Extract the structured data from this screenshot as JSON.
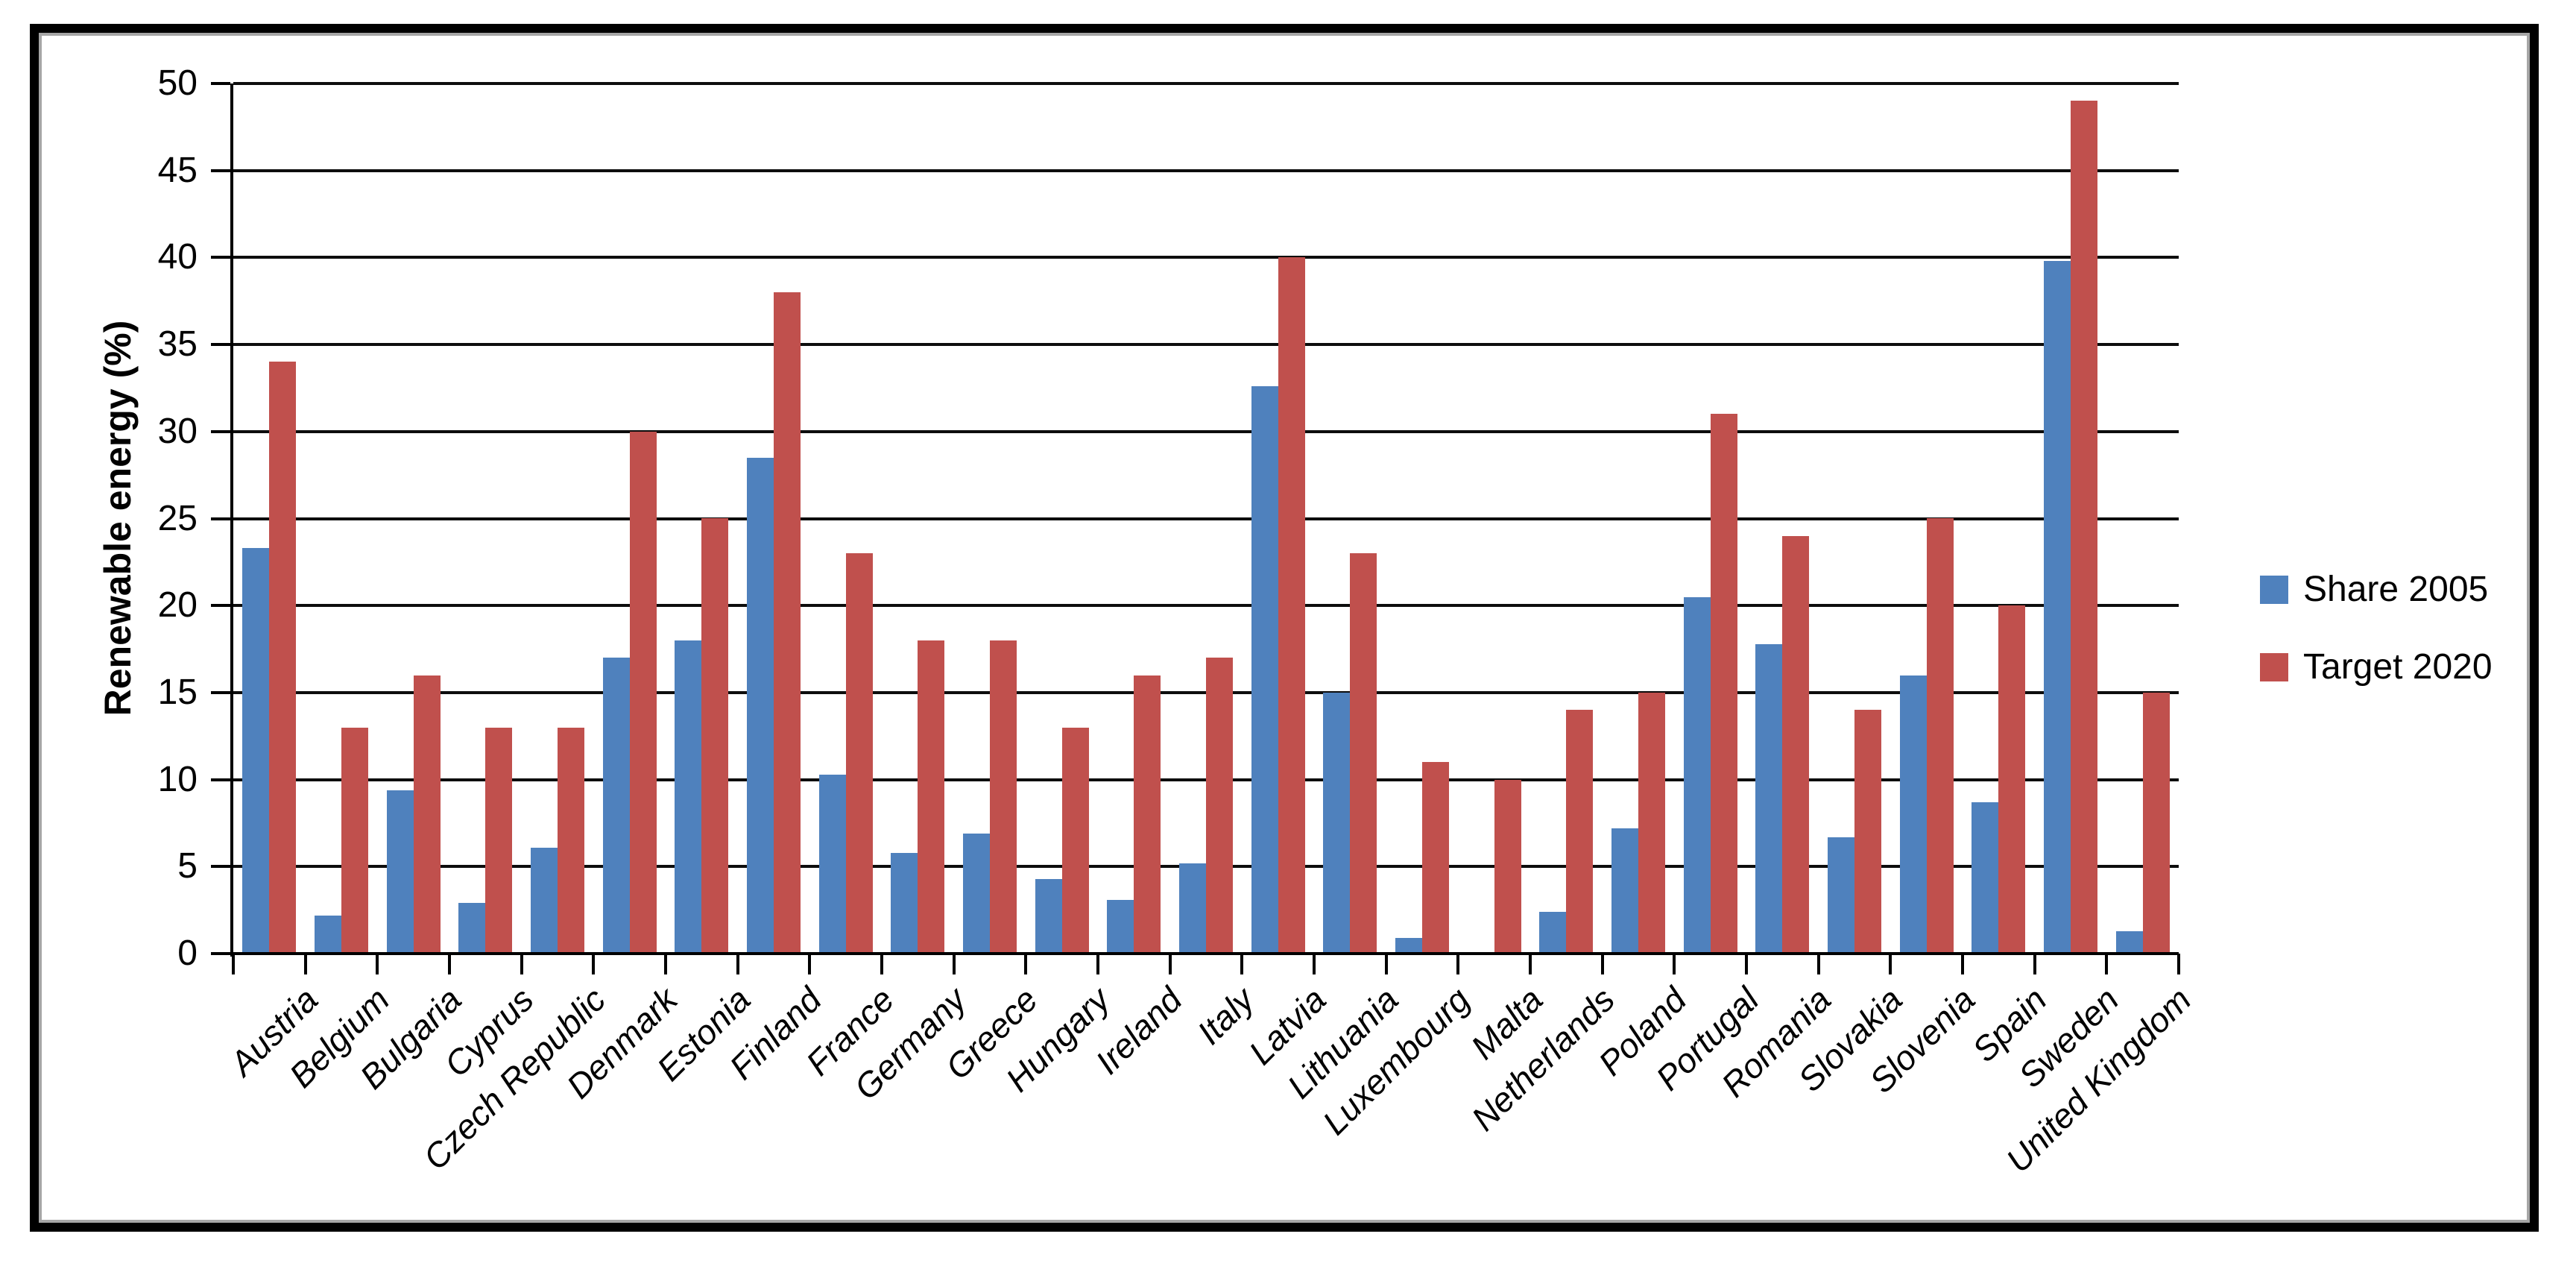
{
  "chart_data": {
    "type": "bar",
    "title": "",
    "xlabel": "",
    "ylabel": "Renewable energy (%)",
    "ylim": [
      0,
      50
    ],
    "y_tick_step": 5,
    "y_ticks": [
      0,
      5,
      10,
      15,
      20,
      25,
      30,
      35,
      40,
      45,
      50
    ],
    "grid": true,
    "legend_position": "right",
    "plot_background": "#FFFFFF",
    "gridline_color": "#000000",
    "axis_color": "#000000",
    "frame_border_color": "#000000",
    "frame_inner_line_color": "#A6A6A6",
    "categories": [
      "Austria",
      "Belgium",
      "Bulgaria",
      "Cyprus",
      "Czech Republic",
      "Denmark",
      "Estonia",
      "Finland",
      "France",
      "Germany",
      "Greece",
      "Hungary",
      "Ireland",
      "Italy",
      "Latvia",
      "Lithuania",
      "Luxembourg",
      "Malta",
      "Netherlands",
      "Poland",
      "Portugal",
      "Romania",
      "Slovakia",
      "Slovenia",
      "Spain",
      "Sweden",
      "United Kingdom"
    ],
    "series": [
      {
        "name": "Share 2005",
        "color": "#4F81BD",
        "values": [
          23.3,
          2.2,
          9.4,
          2.9,
          6.1,
          17.0,
          18.0,
          28.5,
          10.3,
          5.8,
          6.9,
          4.3,
          3.1,
          5.2,
          32.6,
          15.0,
          0.9,
          0.0,
          2.4,
          7.2,
          20.5,
          17.8,
          6.7,
          16.0,
          8.7,
          39.8,
          1.3
        ]
      },
      {
        "name": "Target 2020",
        "color": "#C0504D",
        "values": [
          34,
          13,
          16,
          13,
          13,
          30,
          25,
          38,
          23,
          18,
          18,
          13,
          16,
          17,
          40,
          23,
          11,
          10,
          14,
          15,
          31,
          24,
          14,
          25,
          20,
          49,
          15
        ]
      }
    ]
  }
}
